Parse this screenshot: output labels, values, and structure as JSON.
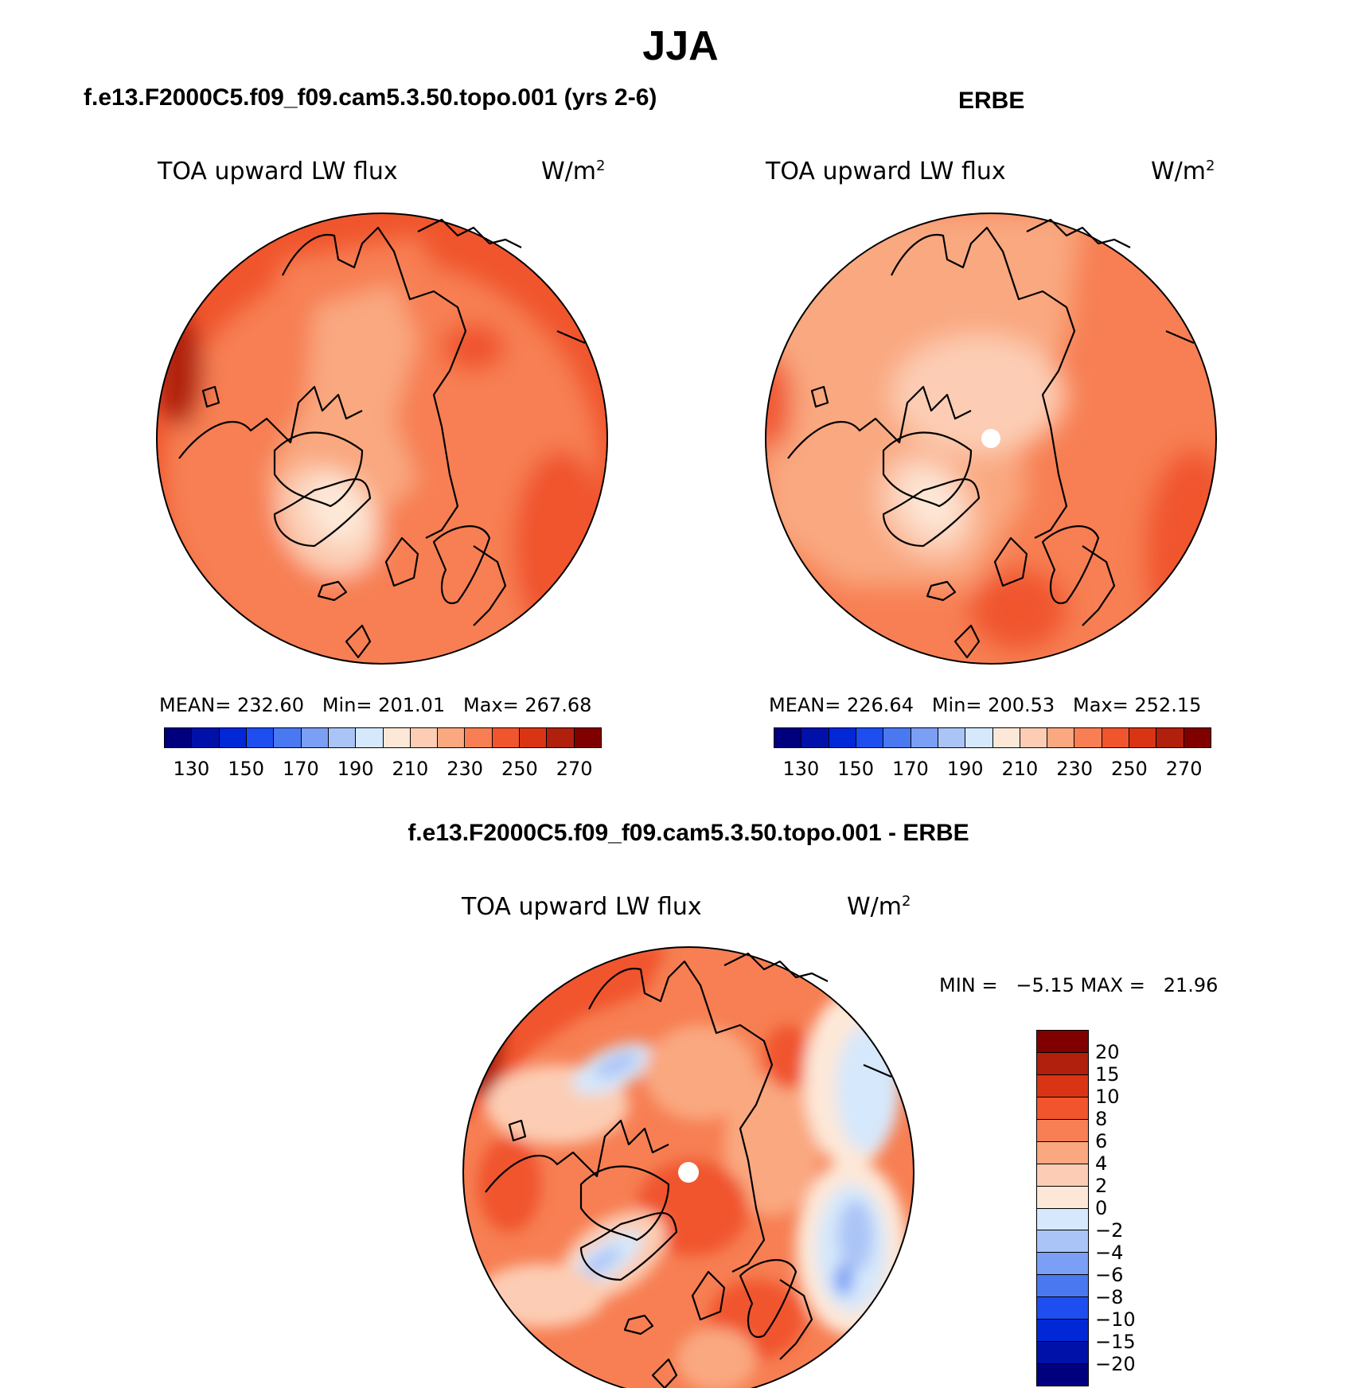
{
  "title": "JJA",
  "panels": [
    {
      "id": "model",
      "title": "f.e13.F2000C5.f09_f09.cam5.3.50.topo.001 (yrs 2-6)",
      "var_label": "TOA upward LW flux",
      "units_base": "W/m",
      "units_sup": "2",
      "stats": "MEAN= 232.60   Min= 201.01   Max= 267.68"
    },
    {
      "id": "obs",
      "title": "ERBE",
      "var_label": "TOA upward LW flux",
      "units_base": "W/m",
      "units_sup": "2",
      "stats": "MEAN= 226.64   Min= 200.53   Max= 252.15"
    },
    {
      "id": "diff",
      "title": "f.e13.F2000C5.f09_f09.cam5.3.50.topo.001 - ERBE",
      "var_label": "TOA upward LW flux",
      "units_base": "W/m",
      "units_sup": "2",
      "stats": "MIN =   −5.15 MAX =   21.96"
    }
  ],
  "colorbar_abs": {
    "ticks": [
      "130",
      "150",
      "170",
      "190",
      "210",
      "230",
      "250",
      "270"
    ],
    "colors": [
      "#00007f",
      "#0011aa",
      "#0028d6",
      "#1e4ef0",
      "#4a78f0",
      "#7a9ff5",
      "#aac4f7",
      "#d6e8fb",
      "#fde8d8",
      "#fccdb4",
      "#f9a880",
      "#f77f53",
      "#f0552d",
      "#d93514",
      "#b0200c",
      "#800000"
    ]
  },
  "colorbar_diff": {
    "ticks": [
      "20",
      "15",
      "10",
      "8",
      "6",
      "4",
      "2",
      "0",
      "−2",
      "−4",
      "−6",
      "−8",
      "−10",
      "−15",
      "−20"
    ],
    "colors": [
      "#800000",
      "#b0200c",
      "#d93514",
      "#f0552d",
      "#f77f53",
      "#f9a880",
      "#fccdb4",
      "#fde8d8",
      "#d6e8fb",
      "#aac4f7",
      "#7a9ff5",
      "#4a78f0",
      "#1e4ef0",
      "#0028d6",
      "#0011aa",
      "#00007f"
    ]
  }
}
